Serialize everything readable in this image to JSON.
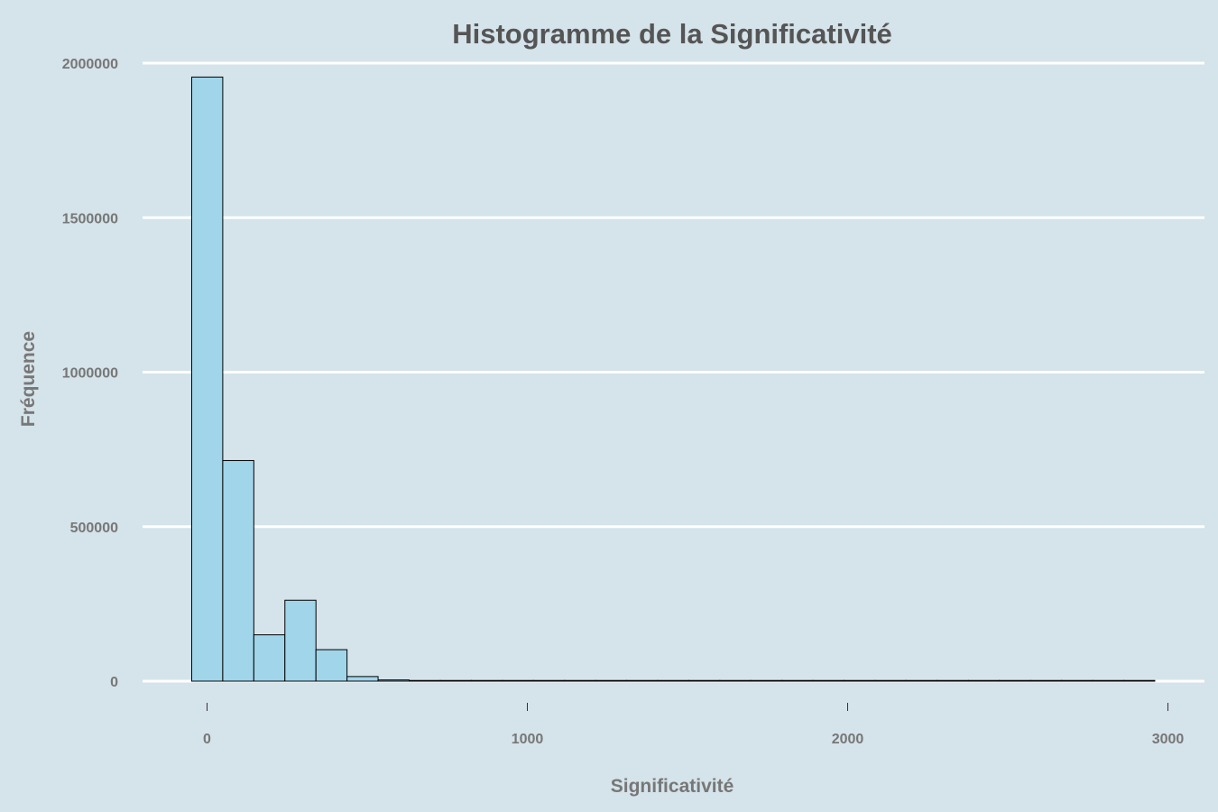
{
  "chart_data": {
    "type": "bar",
    "title": "Histogramme de la Significativité",
    "xlabel": "Significativité",
    "ylabel": "Fréquence",
    "bin_width": 97,
    "bins": [
      {
        "x0": -48,
        "x1": 49,
        "count": 1955000
      },
      {
        "x0": 49,
        "x1": 146,
        "count": 714000
      },
      {
        "x0": 146,
        "x1": 243,
        "count": 150000
      },
      {
        "x0": 243,
        "x1": 340,
        "count": 262000
      },
      {
        "x0": 340,
        "x1": 437,
        "count": 102000
      },
      {
        "x0": 437,
        "x1": 534,
        "count": 15000
      },
      {
        "x0": 534,
        "x1": 631,
        "count": 4000
      },
      {
        "x0": 631,
        "x1": 728,
        "count": 1500
      },
      {
        "x0": 728,
        "x1": 825,
        "count": 700
      },
      {
        "x0": 825,
        "x1": 922,
        "count": 400
      },
      {
        "x0": 922,
        "x1": 1019,
        "count": 250
      },
      {
        "x0": 1019,
        "x1": 1116,
        "count": 150
      },
      {
        "x0": 1116,
        "x1": 1213,
        "count": 100
      },
      {
        "x0": 1213,
        "x1": 1310,
        "count": 70
      },
      {
        "x0": 1310,
        "x1": 1407,
        "count": 50
      },
      {
        "x0": 1407,
        "x1": 1504,
        "count": 40
      },
      {
        "x0": 1504,
        "x1": 1601,
        "count": 30
      },
      {
        "x0": 1601,
        "x1": 1698,
        "count": 20
      },
      {
        "x0": 1698,
        "x1": 1795,
        "count": 15
      },
      {
        "x0": 1795,
        "x1": 1892,
        "count": 12
      },
      {
        "x0": 1892,
        "x1": 1989,
        "count": 10
      },
      {
        "x0": 1989,
        "x1": 2086,
        "count": 8
      },
      {
        "x0": 2086,
        "x1": 2183,
        "count": 6
      },
      {
        "x0": 2183,
        "x1": 2280,
        "count": 5
      },
      {
        "x0": 2280,
        "x1": 2377,
        "count": 4
      },
      {
        "x0": 2377,
        "x1": 2474,
        "count": 3
      },
      {
        "x0": 2474,
        "x1": 2571,
        "count": 3
      },
      {
        "x0": 2571,
        "x1": 2668,
        "count": 2
      },
      {
        "x0": 2668,
        "x1": 2765,
        "count": 2
      },
      {
        "x0": 2765,
        "x1": 2862,
        "count": 1
      },
      {
        "x0": 2862,
        "x1": 2959,
        "count": 1
      }
    ],
    "xlim": [
      -200,
      3110
    ],
    "ylim": [
      -65000,
      2000000
    ],
    "x_ticks": [
      0,
      1000,
      2000,
      3000
    ],
    "x_tick_labels": [
      "0",
      "1000",
      "2000",
      "3000"
    ],
    "y_ticks": [
      0,
      500000,
      1000000,
      1500000,
      2000000
    ],
    "y_tick_labels": [
      "0",
      "500000",
      "1000000",
      "1500000",
      "2000000"
    ],
    "grid": "horizontal",
    "legend": "none"
  },
  "colors": {
    "background": "#d5e3ea",
    "bar_fill": "#a0d5ea",
    "bar_stroke": "#000000",
    "grid": "#ffffff",
    "title_text": "#555555",
    "axis_text": "#777777"
  }
}
